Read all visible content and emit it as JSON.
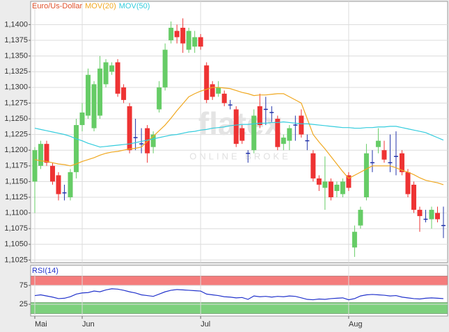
{
  "chart_data": [
    {
      "type": "candlestick",
      "name": "Euro/Us-Dollar",
      "name_color": "#e0502a",
      "watermark": "flatex",
      "watermark_sub": "ONLINE BROKE",
      "categories": [
        "Mai",
        null,
        null,
        null,
        null,
        null,
        null,
        null,
        "Jun",
        null,
        null,
        null,
        null,
        null,
        null,
        null,
        null,
        null,
        null,
        null,
        null,
        null,
        null,
        null,
        null,
        null,
        null,
        null,
        "Jul",
        null,
        null,
        null,
        null,
        null,
        null,
        null,
        null,
        null,
        null,
        null,
        null,
        null,
        null,
        null,
        null,
        null,
        null,
        null,
        null,
        null,
        null,
        null,
        null,
        "Aug",
        null,
        null,
        null,
        null,
        null,
        null,
        null,
        null,
        null,
        null,
        null,
        null,
        null,
        null,
        null,
        null
      ],
      "open": [
        1.115,
        1.1175,
        1.121,
        1.1175,
        1.116,
        1.1132,
        1.1125,
        1.1165,
        1.124,
        1.1255,
        1.1235,
        1.1255,
        1.1305,
        1.1325,
        1.134,
        1.13,
        1.127,
        1.122,
        1.121,
        1.1235,
        1.1205,
        1.1265,
        1.13,
        1.1375,
        1.139,
        1.1395,
        1.136,
        1.1365,
        1.138,
        1.1335,
        1.1305,
        1.129,
        1.129,
        1.1272,
        1.1265,
        1.1235,
        1.1195,
        1.12,
        1.127,
        1.1265,
        1.126,
        1.125,
        1.121,
        1.1215,
        1.124,
        1.1255,
        1.1215,
        1.1195,
        1.1155,
        1.114,
        1.115,
        1.1135,
        1.113,
        1.116,
        1.1045,
        1.108,
        1.1125,
        1.118,
        1.1205,
        1.12,
        1.118,
        1.119,
        1.1195,
        1.1165,
        1.1145,
        1.1105,
        1.109,
        1.109,
        1.11,
        1.108
      ],
      "high": [
        1.1205,
        1.1215,
        1.1215,
        1.118,
        1.1165,
        1.1145,
        1.117,
        1.125,
        1.1275,
        1.133,
        1.131,
        1.135,
        1.1345,
        1.134,
        1.1345,
        1.1305,
        1.1275,
        1.125,
        1.1235,
        1.124,
        1.123,
        1.131,
        1.137,
        1.1405,
        1.14,
        1.141,
        1.1395,
        1.139,
        1.1385,
        1.134,
        1.131,
        1.131,
        1.1295,
        1.128,
        1.127,
        1.124,
        1.12,
        1.1265,
        1.129,
        1.1285,
        1.127,
        1.1255,
        1.1225,
        1.124,
        1.1255,
        1.1265,
        1.1225,
        1.12,
        1.116,
        1.119,
        1.1155,
        1.115,
        1.1155,
        1.1165,
        1.108,
        1.111,
        1.121,
        1.12,
        1.1235,
        1.1215,
        1.1225,
        1.123,
        1.12,
        1.117,
        1.115,
        1.111,
        1.1105,
        1.111,
        1.111,
        1.111
      ],
      "low": [
        1.11,
        1.117,
        1.1175,
        1.1145,
        1.112,
        1.112,
        1.112,
        1.1155,
        1.123,
        1.125,
        1.123,
        1.125,
        1.13,
        1.132,
        1.1285,
        1.1275,
        1.1195,
        1.12,
        1.1195,
        1.118,
        1.1195,
        1.126,
        1.1295,
        1.137,
        1.137,
        1.1355,
        1.1355,
        1.1355,
        1.136,
        1.1275,
        1.128,
        1.1285,
        1.127,
        1.1265,
        1.1205,
        1.121,
        1.118,
        1.1195,
        1.1235,
        1.124,
        1.1245,
        1.12,
        1.12,
        1.12,
        1.1215,
        1.122,
        1.12,
        1.115,
        1.1135,
        1.1105,
        1.112,
        1.1125,
        1.1125,
        1.1135,
        1.103,
        1.1075,
        1.112,
        1.1165,
        1.1195,
        1.118,
        1.1165,
        1.116,
        1.116,
        1.1125,
        1.11,
        1.107,
        1.1085,
        1.1075,
        1.1085,
        1.106
      ],
      "close": [
        1.12,
        1.121,
        1.118,
        1.115,
        1.113,
        1.1132,
        1.1165,
        1.124,
        1.126,
        1.132,
        1.1305,
        1.133,
        1.134,
        1.1335,
        1.129,
        1.128,
        1.12,
        1.122,
        1.121,
        1.1195,
        1.1225,
        1.13,
        1.136,
        1.1395,
        1.138,
        1.137,
        1.139,
        1.138,
        1.1365,
        1.128,
        1.1285,
        1.13,
        1.1275,
        1.1272,
        1.121,
        1.1215,
        1.1195,
        1.1255,
        1.124,
        1.1265,
        1.126,
        1.1205,
        1.122,
        1.1235,
        1.124,
        1.1225,
        1.1215,
        1.1155,
        1.1145,
        1.115,
        1.1125,
        1.1145,
        1.115,
        1.114,
        1.107,
        1.1105,
        1.1195,
        1.118,
        1.1215,
        1.1185,
        1.118,
        1.119,
        1.1165,
        1.113,
        1.1105,
        1.1095,
        1.109,
        1.1105,
        1.109,
        1.108
      ],
      "up_color": "#66cc66",
      "down_color": "#ee3333",
      "flat_color": "#2233aa",
      "series": [
        {
          "name": "MOV(20)",
          "color": "#f0a820",
          "values": [
            1.1185,
            1.1183,
            1.1182,
            1.118,
            1.1178,
            1.1177,
            1.1175,
            1.1178,
            1.1182,
            1.1185,
            1.1188,
            1.1192,
            1.1195,
            1.1197,
            1.1198,
            1.12,
            1.1202,
            1.1203,
            1.1205,
            1.1214,
            1.1222,
            1.1231,
            1.124,
            1.1251,
            1.1263,
            1.1274,
            1.1285,
            1.129,
            1.1294,
            1.1297,
            1.13,
            1.13,
            1.1299,
            1.1298,
            1.1295,
            1.1292,
            1.129,
            1.1287,
            1.1288,
            1.1288,
            1.1289,
            1.129,
            1.129,
            1.1285,
            1.128,
            1.1275,
            1.125,
            1.1225,
            1.1213,
            1.1202,
            1.119,
            1.1178,
            1.1166,
            1.1155,
            1.116,
            1.1165,
            1.117,
            1.1175,
            1.1175,
            1.1175,
            1.1175,
            1.1172,
            1.1168,
            1.1165,
            1.1161,
            1.1156,
            1.1152,
            1.115,
            1.1148,
            1.1145
          ]
        },
        {
          "name": "MOV(50)",
          "color": "#33ccdd",
          "values": [
            1.1235,
            1.1233,
            1.1231,
            1.1229,
            1.1227,
            1.1225,
            1.1222,
            1.1218,
            1.1215,
            1.1211,
            1.1208,
            1.1205,
            1.1206,
            1.1207,
            1.1208,
            1.1209,
            1.121,
            1.1212,
            1.1214,
            1.1216,
            1.1218,
            1.122,
            1.1222,
            1.1224,
            1.1225,
            1.1227,
            1.1229,
            1.123,
            1.1232,
            1.1233,
            1.1235,
            1.1236,
            1.1237,
            1.1239,
            1.124,
            1.1241,
            1.1241,
            1.1242,
            1.1243,
            1.1243,
            1.1244,
            1.1244,
            1.1245,
            1.1244,
            1.1243,
            1.1242,
            1.1242,
            1.1241,
            1.124,
            1.1239,
            1.1238,
            1.1237,
            1.1236,
            1.1236,
            1.1235,
            1.1235,
            1.1236,
            1.1236,
            1.1237,
            1.1237,
            1.1238,
            1.1238,
            1.1236,
            1.1234,
            1.1232,
            1.123,
            1.1228,
            1.1224,
            1.122,
            1.1216
          ]
        }
      ],
      "ylim": [
        1.1021,
        1.1437
      ],
      "yticks": [
        {
          "value": 1.1025,
          "label": "1,1025"
        },
        {
          "value": 1.105,
          "label": "1,1050"
        },
        {
          "value": 1.1075,
          "label": "1,1075"
        },
        {
          "value": 1.11,
          "label": "1,1100"
        },
        {
          "value": 1.1125,
          "label": "1,1125"
        },
        {
          "value": 1.115,
          "label": "1,1150"
        },
        {
          "value": 1.1175,
          "label": "1,1175"
        },
        {
          "value": 1.12,
          "label": "1,1200"
        },
        {
          "value": 1.1225,
          "label": "1,1225"
        },
        {
          "value": 1.125,
          "label": "1,1250"
        },
        {
          "value": 1.1275,
          "label": "1,1275"
        },
        {
          "value": 1.13,
          "label": "1,1300"
        },
        {
          "value": 1.1325,
          "label": "1,1325"
        },
        {
          "value": 1.135,
          "label": "1,1350"
        },
        {
          "value": 1.1375,
          "label": "1,1375"
        },
        {
          "value": 1.14,
          "label": "1,1400"
        }
      ],
      "grid": true
    },
    {
      "type": "line",
      "series": [
        {
          "name": "RSI(14)",
          "color": "#2233cc",
          "values": [
            48,
            50,
            47,
            44,
            40,
            41,
            45,
            52,
            55,
            56,
            60,
            58,
            63,
            66,
            65,
            62,
            58,
            55,
            50,
            48,
            46,
            52,
            58,
            62,
            64,
            63,
            62,
            61,
            60,
            52,
            50,
            48,
            45,
            44,
            42,
            43,
            38,
            47,
            45,
            46,
            44,
            46,
            45,
            47,
            46,
            42,
            38,
            37,
            39,
            38,
            40,
            41,
            42,
            37,
            40,
            47,
            50,
            51,
            50,
            49,
            47,
            48,
            44,
            42,
            40,
            39,
            41,
            42,
            41,
            40
          ]
        }
      ],
      "bands": [
        {
          "from": 75,
          "to": 100,
          "color": "#f47c7c"
        },
        {
          "from": 0,
          "to": 30,
          "color": "#7cd07c"
        }
      ],
      "ylim": [
        -6,
        128
      ],
      "yticks": [
        75,
        25
      ],
      "grid": true
    }
  ]
}
